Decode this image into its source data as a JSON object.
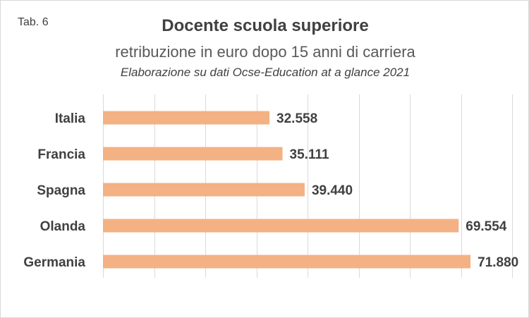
{
  "tab_label": "Tab. 6",
  "colors": {
    "bar": "#f4b183",
    "grid": "#d9d9d9",
    "text": "#404040"
  },
  "chart_data": {
    "type": "bar",
    "orientation": "horizontal",
    "title": "Docente scuola superiore",
    "subtitle": "retribuzione in euro dopo 15 anni di carriera",
    "source": "Elaborazione su dati Ocse-Education at a glance 2021",
    "categories": [
      "Italia",
      "Francia",
      "Spagna",
      "Olanda",
      "Germania"
    ],
    "values": [
      32558,
      35111,
      39440,
      69554,
      71880
    ],
    "value_labels": [
      "32.558",
      "35.111",
      "39.440",
      "69.554",
      "71.880"
    ],
    "xlim": [
      0,
      80000
    ],
    "grid": true,
    "legend": "none"
  }
}
